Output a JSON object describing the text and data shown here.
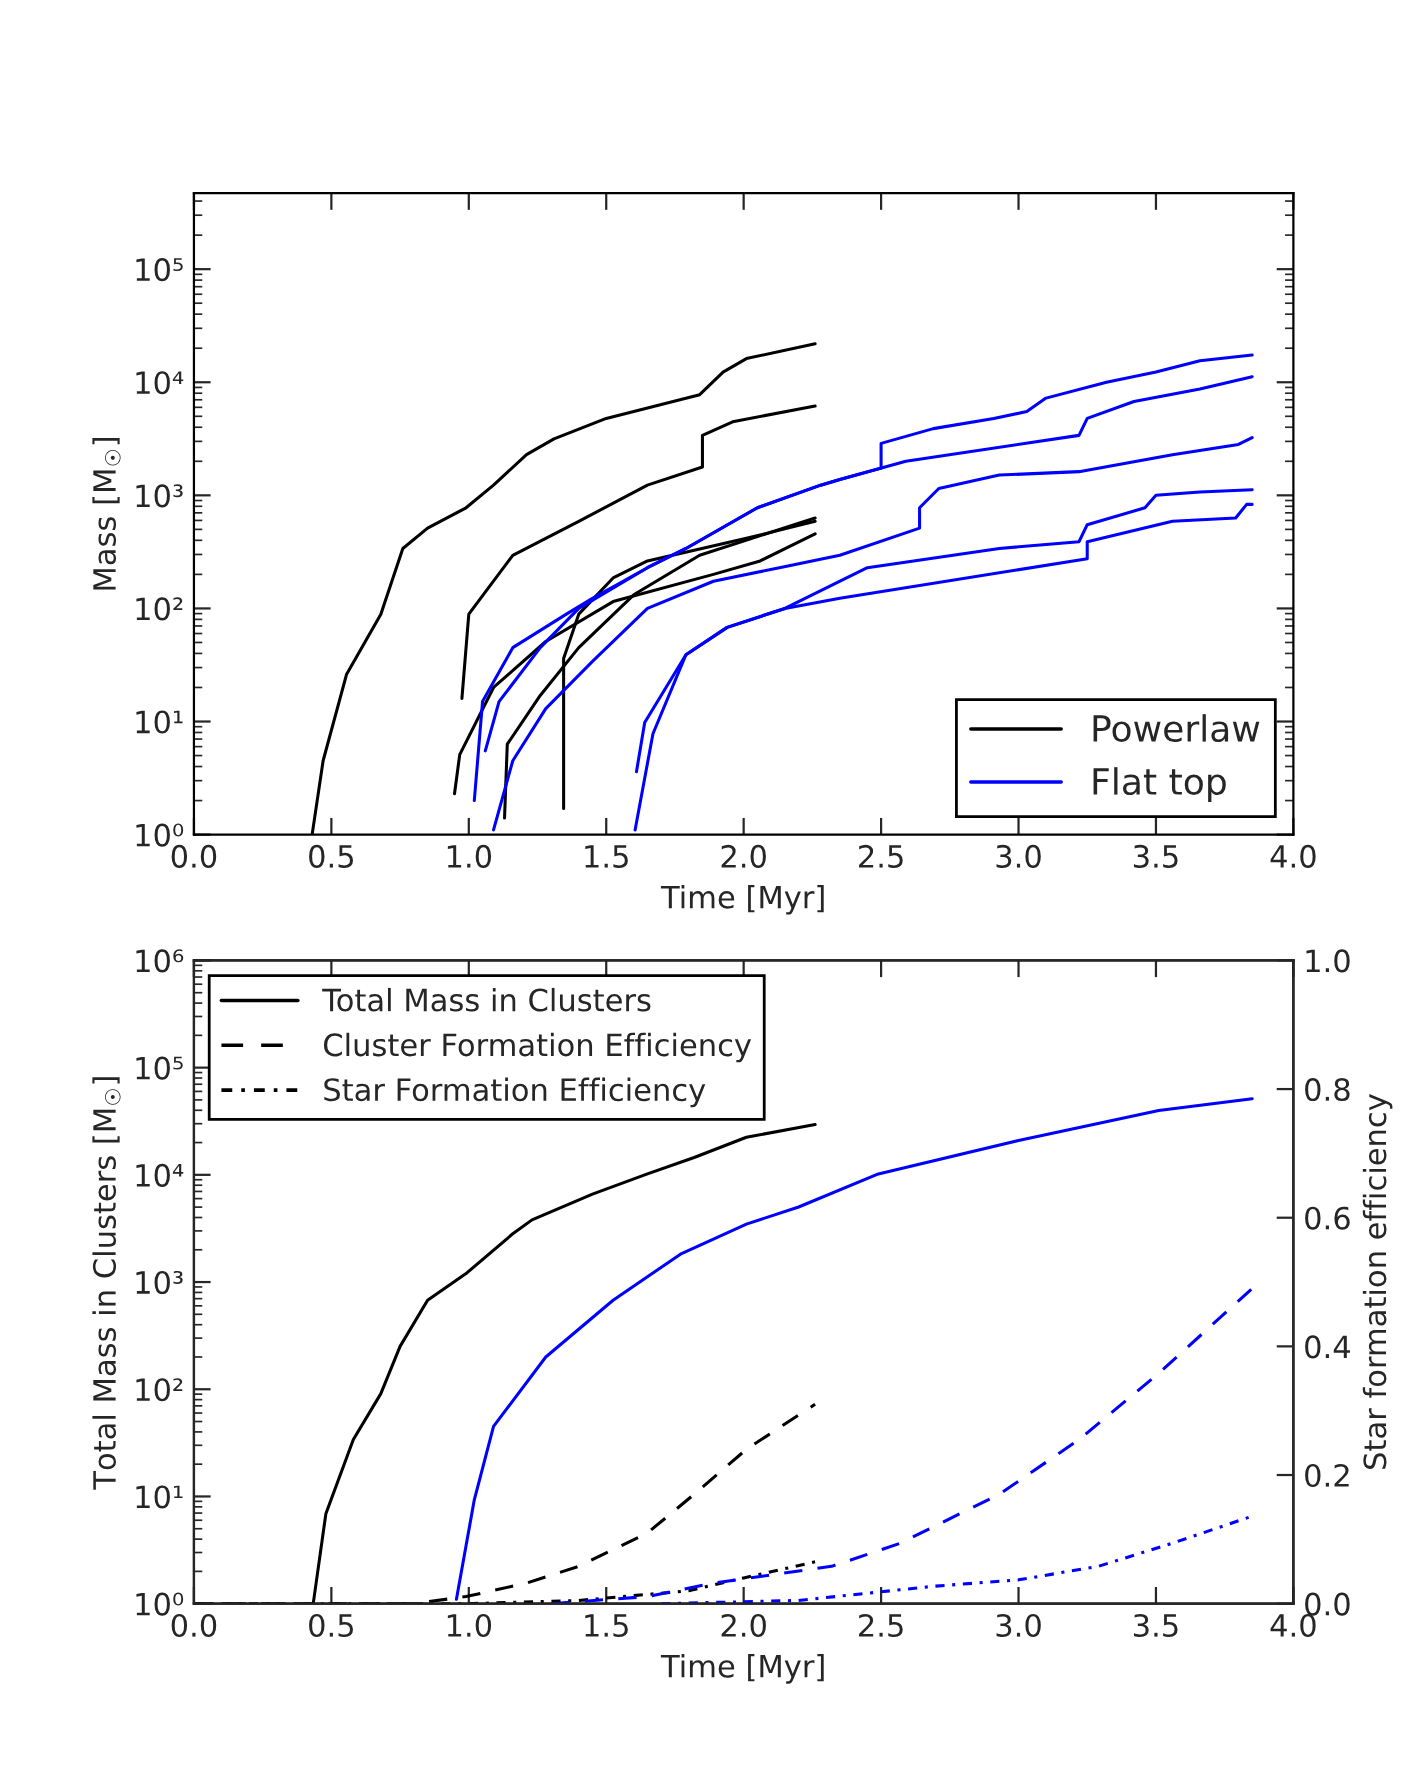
{
  "chart_data": [
    {
      "type": "line",
      "xlabel": "Time [Myr]",
      "ylabel": "Mass [M$_{☉}$]",
      "log": true,
      "legend": "bottom right",
      "xlim": [
        0,
        4
      ],
      "xticks": [
        {
          "value": 0,
          "label": "0.0"
        },
        {
          "value": 0.5,
          "label": "0.5"
        },
        {
          "value": 1,
          "label": "1.0"
        },
        {
          "value": 1.5,
          "label": "1.5"
        },
        {
          "value": 2,
          "label": "2.0"
        },
        {
          "value": 2.5,
          "label": "2.5"
        },
        {
          "value": 3,
          "label": "3.0"
        },
        {
          "value": 3.5,
          "label": "3.5"
        },
        {
          "value": 4,
          "label": "4.0"
        }
      ],
      "ylim": [
        1,
        470000
      ],
      "yticks": [
        {
          "value": 1,
          "label": "10⁰"
        },
        {
          "value": 10,
          "label": "10¹"
        },
        {
          "value": 100,
          "label": "10²"
        },
        {
          "value": 1000,
          "label": "10³"
        },
        {
          "value": 10000,
          "label": "10⁴"
        },
        {
          "value": 100000,
          "label": "10⁵"
        }
      ],
      "series": [
        {
          "name": "Powerlaw",
          "color": "#000000",
          "line_style": "solid",
          "x": [
            0.43,
            0.47,
            0.555,
            0.68,
            0.76,
            0.85,
            0.99,
            1.09,
            1.21,
            1.31,
            1.5,
            1.84,
            1.925,
            2.01,
            2.26
          ],
          "values": [
            1,
            4.5,
            26,
            89,
            339,
            513,
            776,
            1230,
            2290,
            3160,
            4790,
            7760,
            12300,
            16200,
            21900
          ]
        },
        {
          "color": "#000000",
          "line_style": "solid",
          "x": [
            0.975,
            1.0,
            1.16,
            1.4,
            1.65,
            1.85,
            1.85,
            1.96,
            2.26
          ],
          "values": [
            16,
            89,
            295,
            589,
            1230,
            1780,
            3390,
            4470,
            6170
          ]
        },
        {
          "color": "#000000",
          "line_style": "solid",
          "x": [
            0.948,
            0.967,
            1.09,
            1.28,
            1.525,
            1.89,
            2.06,
            2.26
          ],
          "values": [
            2.3,
            5.1,
            20,
            51,
            115,
            200,
            263,
            457
          ]
        },
        {
          "color": "#000000",
          "line_style": "solid",
          "x": [
            1.13,
            1.14,
            1.26,
            1.4,
            1.6,
            1.84,
            2.26
          ],
          "values": [
            1.4,
            6.3,
            17,
            45,
            132,
            295,
            631
          ]
        },
        {
          "color": "#000000",
          "line_style": "solid",
          "x": [
            1.345,
            1.345,
            1.4,
            1.525,
            1.65,
            2.01,
            2.26
          ],
          "values": [
            1.7,
            36,
            89,
            186,
            263,
            417,
            589
          ]
        },
        {
          "name": "Flat top",
          "color": "#0000ff",
          "line_style": "solid",
          "x": [
            1.02,
            1.05,
            1.16,
            1.355,
            1.45,
            1.65,
            1.79,
            2.05,
            2.28,
            2.35,
            2.5,
            2.5,
            2.69,
            2.91,
            3.03,
            3.1,
            3.32,
            3.5,
            3.66,
            3.85
          ],
          "values": [
            2,
            15,
            45,
            89,
            123,
            229,
            339,
            776,
            1230,
            1380,
            1740,
            2880,
            3890,
            4790,
            5500,
            7240,
            10000,
            12300,
            15500,
            17400
          ]
        },
        {
          "color": "#0000ff",
          "line_style": "solid",
          "x": [
            1.06,
            1.11,
            1.26,
            1.4,
            1.65,
            1.79,
            2.05,
            2.28,
            2.35,
            2.59,
            3.22,
            3.25,
            3.42,
            3.66,
            3.85
          ],
          "values": [
            5.5,
            15,
            45,
            100,
            229,
            339,
            776,
            1230,
            1380,
            2000,
            3390,
            4790,
            6760,
            8710,
            11200
          ]
        },
        {
          "color": "#0000ff",
          "line_style": "solid",
          "x": [
            1.09,
            1.16,
            1.28,
            1.45,
            1.65,
            1.89,
            2.13,
            2.35,
            2.64,
            2.64,
            2.71,
            2.93,
            3.22,
            3.56,
            3.8,
            3.85
          ],
          "values": [
            1.1,
            4.5,
            13,
            34,
            100,
            174,
            229,
            295,
            513,
            776,
            1150,
            1510,
            1620,
            2290,
            2820,
            3240
          ]
        },
        {
          "color": "#0000ff",
          "line_style": "solid",
          "x": [
            1.605,
            1.67,
            1.79,
            1.94,
            2.15,
            2.45,
            2.93,
            3.22,
            3.25,
            3.46,
            3.5,
            3.66,
            3.85
          ],
          "values": [
            1.1,
            7.8,
            39,
            68,
            100,
            229,
            339,
            389,
            550,
            776,
            1000,
            1070,
            1120
          ]
        },
        {
          "color": "#0000ff",
          "line_style": "solid",
          "x": [
            1.61,
            1.64,
            1.79,
            1.94,
            2.15,
            2.35,
            3.25,
            3.25,
            3.56,
            3.79,
            3.83,
            3.85
          ],
          "values": [
            3.6,
            9.8,
            39,
            68,
            100,
            123,
            275,
            389,
            589,
            631,
            832,
            832
          ]
        }
      ]
    },
    {
      "type": "line",
      "xlabel": "Time [Myr]",
      "ylabel": "Total Mass in Clusters [M$_{☉}$]",
      "y2label": "Star formation efficiency",
      "log": true,
      "legend": "top left",
      "xlim": [
        0,
        4
      ],
      "xticks": [
        {
          "value": 0,
          "label": "0.0"
        },
        {
          "value": 0.5,
          "label": "0.5"
        },
        {
          "value": 1,
          "label": "1.0"
        },
        {
          "value": 1.5,
          "label": "1.5"
        },
        {
          "value": 2,
          "label": "2.0"
        },
        {
          "value": 2.5,
          "label": "2.5"
        },
        {
          "value": 3,
          "label": "3.0"
        },
        {
          "value": 3.5,
          "label": "3.5"
        },
        {
          "value": 4,
          "label": "4.0"
        }
      ],
      "ylim": [
        1,
        1000000
      ],
      "yticks": [
        {
          "value": 1,
          "label": "10⁰"
        },
        {
          "value": 10,
          "label": "10¹"
        },
        {
          "value": 100,
          "label": "10²"
        },
        {
          "value": 1000,
          "label": "10³"
        },
        {
          "value": 10000,
          "label": "10⁴"
        },
        {
          "value": 100000,
          "label": "10⁵"
        },
        {
          "value": 1000000,
          "label": "10⁶"
        }
      ],
      "y2lim": [
        0,
        1
      ],
      "y2ticks": [
        {
          "value": 0,
          "label": "0.0"
        },
        {
          "value": 0.2,
          "label": "0.2"
        },
        {
          "value": 0.4,
          "label": "0.4"
        },
        {
          "value": 0.6,
          "label": "0.6"
        },
        {
          "value": 0.8,
          "label": "0.8"
        },
        {
          "value": 1,
          "label": "1.0"
        }
      ],
      "series": [
        {
          "name": "Total Mass in Clusters",
          "color": "#000000",
          "line_style": "solid",
          "x": [
            0.434,
            0.48,
            0.58,
            0.68,
            0.75,
            0.85,
            0.99,
            1.16,
            1.23,
            1.45,
            1.65,
            1.82,
            2.01,
            2.26
          ],
          "values": [
            1,
            6.9,
            34,
            91,
            251,
            676,
            1200,
            2820,
            3800,
            6610,
            10200,
            14500,
            22400,
            29500
          ]
        },
        {
          "name": "Cluster Formation Efficiency",
          "color": "#000000",
          "line_style": "dashed",
          "axis": "y2",
          "x": [
            0,
            0.8,
            0.99,
            1.21,
            1.4,
            1.65,
            1.82,
            2.01,
            2.26
          ],
          "values": [
            0,
            0,
            0.011,
            0.032,
            0.058,
            0.11,
            0.17,
            0.24,
            0.31
          ]
        },
        {
          "name": "Star Formation Efficiency",
          "color": "#000000",
          "line_style": "dashdot",
          "axis": "y2",
          "x": [
            0,
            1.0,
            1.4,
            1.8,
            2.0,
            2.26
          ],
          "values": [
            0,
            0,
            0.005,
            0.02,
            0.04,
            0.065
          ]
        },
        {
          "color": "#0000ff",
          "line_style": "solid",
          "x": [
            0.955,
            1.02,
            1.09,
            1.28,
            1.525,
            1.77,
            2.01,
            2.2,
            2.49,
            3.0,
            3.51,
            3.85
          ],
          "values": [
            1.1,
            9.3,
            45,
            200,
            676,
            1820,
            3470,
            5010,
            10200,
            20900,
            39800,
            51300
          ]
        },
        {
          "color": "#0000ff",
          "line_style": "dashed",
          "axis": "y2",
          "x": [
            1.3,
            1.65,
            1.89,
            2.32,
            2.57,
            2.93,
            3.22,
            3.51,
            3.85
          ],
          "values": [
            0,
            0.011,
            0.032,
            0.058,
            0.094,
            0.17,
            0.255,
            0.358,
            0.49
          ]
        },
        {
          "color": "#0000ff",
          "line_style": "dashdot",
          "axis": "y2",
          "x": [
            1.7,
            2.2,
            2.69,
            3.0,
            3.29,
            3.56,
            3.85
          ],
          "values": [
            0,
            0.005,
            0.027,
            0.037,
            0.058,
            0.094,
            0.136
          ]
        }
      ]
    }
  ]
}
